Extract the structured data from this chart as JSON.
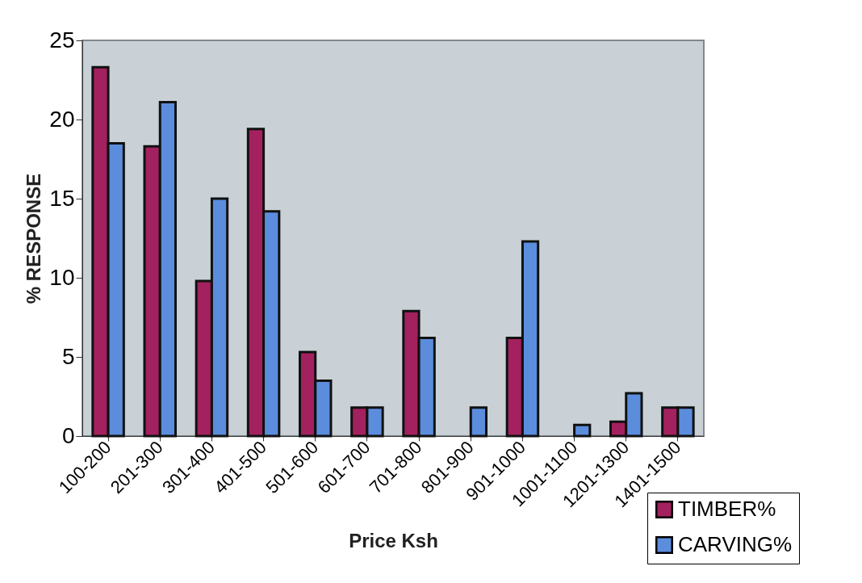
{
  "chart_data": {
    "type": "bar",
    "xlabel": "Price Ksh",
    "ylabel": "% RESPONSE",
    "categories": [
      "100-200",
      "201-300",
      "301-400",
      "401-500",
      "501-600",
      "601-700",
      "701-800",
      "801-900",
      "901-1000",
      "1001-1100",
      "1201-1300",
      "1401-1500"
    ],
    "series": [
      {
        "name": "TIMBER%",
        "color": "#a3215f",
        "values": [
          23.3,
          18.3,
          9.8,
          19.4,
          5.3,
          1.8,
          7.9,
          0,
          6.2,
          0,
          0.9,
          1.8
        ]
      },
      {
        "name": "CARVING%",
        "color": "#5b8ddc",
        "values": [
          18.5,
          21.1,
          15.0,
          14.2,
          3.5,
          1.8,
          6.2,
          1.8,
          12.3,
          0.7,
          2.7,
          1.8
        ]
      }
    ],
    "ylim": [
      0,
      25
    ],
    "yticks": [
      0,
      5,
      10,
      15,
      20,
      25
    ],
    "grid": false,
    "legend": "bottom right"
  }
}
